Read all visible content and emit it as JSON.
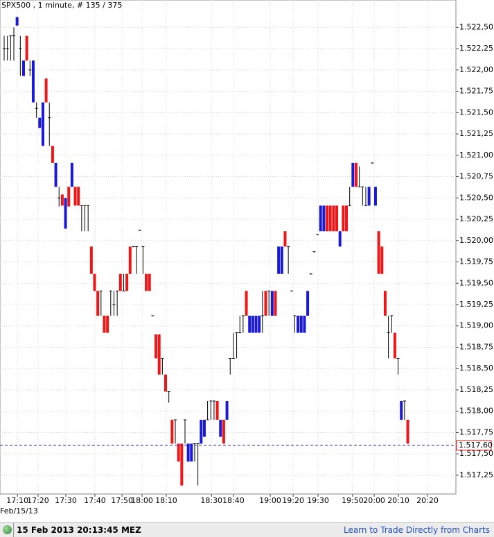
{
  "chart_data": {
    "type": "ohlc",
    "title": "SPX500 , 1 minute, # 135 / 375",
    "date_label": "Feb/15/13",
    "up_color": "#1a1ad6",
    "down_color": "#ee1616",
    "flat_color": "#000000",
    "grid": true,
    "ylim": [
      1517.03,
      1522.82
    ],
    "yticks": [
      {
        "value": 1517.25,
        "label": "1.517,25"
      },
      {
        "value": 1517.5,
        "label": "1.517,50"
      },
      {
        "value": 1517.75,
        "label": "1.517,75"
      },
      {
        "value": 1518.0,
        "label": "1.518,00"
      },
      {
        "value": 1518.25,
        "label": "1.518,25"
      },
      {
        "value": 1518.5,
        "label": "1.518,50"
      },
      {
        "value": 1518.75,
        "label": "1.518,75"
      },
      {
        "value": 1519.0,
        "label": "1.519,00"
      },
      {
        "value": 1519.25,
        "label": "1.519,25"
      },
      {
        "value": 1519.5,
        "label": "1.519,50"
      },
      {
        "value": 1519.75,
        "label": "1.519,75"
      },
      {
        "value": 1520.0,
        "label": "1.520,00"
      },
      {
        "value": 1520.25,
        "label": "1.520,25"
      },
      {
        "value": 1520.5,
        "label": "1.520,50"
      },
      {
        "value": 1520.75,
        "label": "1.520,75"
      },
      {
        "value": 1521.0,
        "label": "1.521,00"
      },
      {
        "value": 1521.25,
        "label": "1.521,25"
      },
      {
        "value": 1521.5,
        "label": "1.521,50"
      },
      {
        "value": 1521.75,
        "label": "1.521,75"
      },
      {
        "value": 1522.0,
        "label": "1.522,00"
      },
      {
        "value": 1522.25,
        "label": "1.522,25"
      },
      {
        "value": 1522.5,
        "label": "1.522,50"
      }
    ],
    "xlim": [
      -1.29,
      139.9
    ],
    "xticks": [
      {
        "value": 4.1,
        "label": "17:10"
      },
      {
        "value": 10.5,
        "label": "17:20"
      },
      {
        "value": 19.1,
        "label": "17:30"
      },
      {
        "value": 28.1,
        "label": "17:40"
      },
      {
        "value": 36.5,
        "label": "17:50"
      },
      {
        "value": 42.7,
        "label": "18:00"
      },
      {
        "value": 50.2,
        "label": "18:10"
      },
      {
        "value": 64.2,
        "label": "18:30"
      },
      {
        "value": 71.0,
        "label": "18:40"
      },
      {
        "value": 82.4,
        "label": "19:00"
      },
      {
        "value": 89.5,
        "label": "19:20"
      },
      {
        "value": 97.2,
        "label": "19:30"
      },
      {
        "value": 107.9,
        "label": "19:50"
      },
      {
        "value": 114.6,
        "label": "20:00"
      },
      {
        "value": 122.1,
        "label": "20:10"
      },
      {
        "value": 131.1,
        "label": "20:20"
      }
    ],
    "last_price": {
      "value": 1517.6,
      "label": "1.517,60"
    },
    "ohlc": [
      [
        1522.25,
        1522.4,
        1522.11,
        1522.25
      ],
      [
        1522.25,
        1522.4,
        1522.11,
        1522.25
      ],
      [
        1522.4,
        1522.4,
        1522.11,
        1522.4
      ],
      [
        1522.4,
        1522.5,
        1522.11,
        1522.4
      ],
      [
        1522.52,
        1522.62,
        1522.52,
        1522.62
      ],
      [
        1522.25,
        1522.4,
        1521.93,
        1522.25
      ],
      [
        1521.93,
        1522.11,
        1521.93,
        1522.11
      ],
      [
        1522.4,
        1522.4,
        1522.11,
        1522.11
      ],
      [
        1522.0,
        1522.11,
        1521.93,
        1522.0
      ],
      [
        1521.62,
        1522.11,
        1521.62,
        1522.11
      ],
      [
        1521.55,
        1521.62,
        1521.44,
        1521.55
      ],
      [
        1521.32,
        1521.44,
        1521.32,
        1521.44
      ],
      [
        1521.11,
        1521.62,
        1521.11,
        1521.62
      ],
      [
        1521.9,
        1521.9,
        1521.62,
        1521.62
      ],
      [
        1521.44,
        1521.62,
        1521.11,
        1521.44
      ],
      [
        1521.11,
        1521.11,
        1520.91,
        1520.91
      ],
      [
        1520.63,
        1520.91,
        1520.63,
        1520.91
      ],
      [
        1520.5,
        1520.63,
        1520.4,
        1520.5
      ],
      [
        1520.54,
        1520.54,
        1520.41,
        1520.41
      ],
      [
        1520.14,
        1520.5,
        1520.14,
        1520.5
      ],
      [
        1520.63,
        1520.63,
        1520.4,
        1520.4
      ],
      [
        1520.63,
        1520.91,
        1520.63,
        1520.91
      ],
      [
        1520.63,
        1520.63,
        1520.41,
        1520.41
      ],
      [
        1520.63,
        1520.63,
        1520.41,
        1520.41
      ],
      [
        1520.41,
        1520.41,
        1520.11,
        1520.41
      ],
      [
        1520.41,
        1520.41,
        1520.11,
        1520.41
      ],
      [
        1520.41,
        1520.41,
        1520.11,
        1520.41
      ],
      [
        1519.93,
        1519.93,
        1519.61,
        1519.61
      ],
      [
        1519.61,
        1519.61,
        1519.41,
        1519.41
      ],
      [
        1519.41,
        1519.41,
        1519.12,
        1519.12
      ],
      [
        1519.41,
        1519.41,
        1519.12,
        1519.41
      ],
      [
        1519.12,
        1519.12,
        1518.92,
        1518.92
      ],
      [
        1519.12,
        1519.12,
        1518.92,
        1518.92
      ],
      [
        1519.41,
        1519.41,
        1519.12,
        1519.41
      ],
      [
        1519.25,
        1519.41,
        1519.12,
        1519.25
      ],
      [
        1519.41,
        1519.41,
        1519.12,
        1519.41
      ],
      [
        1519.61,
        1519.61,
        1519.41,
        1519.41
      ],
      [
        1519.41,
        1519.61,
        1519.41,
        1519.41
      ],
      [
        1519.61,
        1519.61,
        1519.41,
        1519.41
      ],
      [
        1519.93,
        1519.93,
        1519.61,
        1519.61
      ],
      [
        1519.93,
        1519.93,
        1519.93,
        1519.93
      ],
      [
        1519.93,
        1519.93,
        1519.61,
        1519.93
      ],
      [
        1520.12,
        1520.12,
        1520.12,
        1520.12
      ],
      [
        1519.93,
        1519.93,
        1519.61,
        1519.93
      ],
      [
        1519.61,
        1519.61,
        1519.41,
        1519.41
      ],
      [
        1519.61,
        1519.61,
        1519.41,
        1519.41
      ],
      [
        1519.12,
        1519.12,
        1519.12,
        1519.12
      ],
      [
        1518.9,
        1518.9,
        1518.62,
        1518.62
      ],
      [
        1518.9,
        1518.9,
        1518.43,
        1518.43
      ],
      [
        1518.62,
        1518.62,
        1518.43,
        1518.62
      ],
      [
        1518.43,
        1518.43,
        1518.23,
        1518.23
      ],
      [
        1518.23,
        1518.23,
        1518.1,
        1518.23
      ],
      [
        1517.9,
        1517.9,
        1517.62,
        1517.62
      ],
      [
        1517.9,
        1517.9,
        1517.62,
        1517.9
      ],
      [
        1517.62,
        1517.62,
        1517.41,
        1517.41
      ],
      [
        1517.62,
        1517.62,
        1517.13,
        1517.13
      ],
      [
        1517.9,
        1517.9,
        1517.62,
        1517.9
      ],
      [
        1517.41,
        1517.62,
        1517.41,
        1517.62
      ],
      [
        1517.41,
        1517.62,
        1517.41,
        1517.62
      ],
      [
        1517.62,
        1517.62,
        1517.41,
        1517.62
      ],
      [
        1517.62,
        1517.62,
        1517.13,
        1517.62
      ],
      [
        1517.62,
        1517.9,
        1517.62,
        1517.9
      ],
      [
        1517.7,
        1517.9,
        1517.7,
        1517.9
      ],
      [
        1517.9,
        1518.12,
        1517.9,
        1517.9
      ],
      [
        1518.12,
        1518.12,
        1517.9,
        1518.12
      ],
      [
        1518.12,
        1518.12,
        1517.9,
        1518.12
      ],
      [
        1518.12,
        1518.12,
        1517.9,
        1517.9
      ],
      [
        1517.7,
        1517.9,
        1517.7,
        1517.9
      ],
      [
        1517.9,
        1517.9,
        1517.62,
        1517.62
      ],
      [
        1517.9,
        1518.12,
        1517.9,
        1518.12
      ],
      [
        1518.62,
        1518.62,
        1518.43,
        1518.62
      ],
      [
        1518.62,
        1518.92,
        1518.62,
        1518.62
      ],
      [
        1518.92,
        1518.92,
        1518.62,
        1518.92
      ],
      [
        1518.92,
        1519.12,
        1518.92,
        1518.92
      ],
      [
        1519.12,
        1519.12,
        1518.92,
        1519.12
      ],
      [
        1519.41,
        1519.41,
        1519.12,
        1519.12
      ],
      [
        1518.92,
        1519.12,
        1518.92,
        1519.12
      ],
      [
        1518.92,
        1519.12,
        1518.92,
        1519.12
      ],
      [
        1518.92,
        1519.12,
        1518.92,
        1519.12
      ],
      [
        1518.92,
        1519.12,
        1518.92,
        1519.12
      ],
      [
        1519.12,
        1519.41,
        1518.92,
        1519.12
      ],
      [
        1519.41,
        1519.41,
        1519.12,
        1519.12
      ],
      [
        1519.41,
        1519.41,
        1519.12,
        1519.41
      ],
      [
        1519.12,
        1519.41,
        1519.12,
        1519.41
      ],
      [
        1519.41,
        1519.41,
        1519.12,
        1519.12
      ],
      [
        1519.61,
        1519.93,
        1519.61,
        1519.93
      ],
      [
        1519.61,
        1519.93,
        1519.61,
        1519.93
      ],
      [
        1520.11,
        1520.11,
        1519.93,
        1519.93
      ],
      [
        1519.93,
        1519.93,
        1519.61,
        1519.93
      ],
      [
        1519.41,
        1519.41,
        1519.41,
        1519.41
      ],
      [
        1519.12,
        1519.12,
        1518.92,
        1519.12
      ],
      [
        1518.92,
        1519.12,
        1518.92,
        1519.12
      ],
      [
        1518.92,
        1519.12,
        1518.92,
        1519.12
      ],
      [
        1518.92,
        1519.12,
        1518.92,
        1519.12
      ],
      [
        1519.12,
        1519.41,
        1519.12,
        1519.41
      ],
      [
        1519.61,
        1519.61,
        1519.61,
        1519.61
      ],
      [
        1519.87,
        1519.87,
        1519.87,
        1519.87
      ],
      [
        1520.07,
        1520.07,
        1520.07,
        1520.07
      ],
      [
        1520.11,
        1520.41,
        1520.11,
        1520.41
      ],
      [
        1520.11,
        1520.41,
        1520.11,
        1520.41
      ],
      [
        1520.41,
        1520.41,
        1520.11,
        1520.11
      ],
      [
        1520.41,
        1520.41,
        1520.11,
        1520.11
      ],
      [
        1520.41,
        1520.41,
        1520.11,
        1520.11
      ],
      [
        1520.41,
        1520.41,
        1520.11,
        1520.11
      ],
      [
        1519.93,
        1520.11,
        1519.93,
        1520.11
      ],
      [
        1520.41,
        1520.41,
        1520.11,
        1520.11
      ],
      [
        1520.41,
        1520.41,
        1520.11,
        1520.11
      ],
      [
        1520.41,
        1520.63,
        1520.41,
        1520.41
      ],
      [
        1520.63,
        1520.91,
        1520.63,
        1520.91
      ],
      [
        1520.91,
        1520.91,
        1520.63,
        1520.63
      ],
      [
        1520.63,
        1520.87,
        1520.63,
        1520.63
      ],
      [
        1520.63,
        1520.63,
        1520.41,
        1520.63
      ],
      [
        1520.41,
        1520.63,
        1520.41,
        1520.41
      ],
      [
        1520.41,
        1520.63,
        1520.41,
        1520.63
      ],
      [
        1520.91,
        1520.91,
        1520.91,
        1520.91
      ],
      [
        1520.41,
        1520.63,
        1520.41,
        1520.63
      ],
      [
        1520.11,
        1520.11,
        1519.61,
        1519.61
      ],
      [
        1519.93,
        1519.93,
        1519.61,
        1519.61
      ],
      [
        1519.41,
        1519.41,
        1519.12,
        1519.12
      ],
      [
        1518.92,
        1519.12,
        1518.62,
        1518.92
      ],
      [
        1519.12,
        1519.12,
        1518.92,
        1519.12
      ],
      [
        1518.92,
        1518.92,
        1518.62,
        1518.62
      ],
      [
        1518.62,
        1518.62,
        1518.43,
        1518.62
      ],
      [
        1517.9,
        1518.12,
        1517.9,
        1518.12
      ],
      [
        1518.12,
        1518.12,
        1517.9,
        1518.12
      ],
      [
        1517.9,
        1517.9,
        1517.62,
        1517.62
      ]
    ]
  },
  "footer": {
    "timestamp": "15 Feb 2013 20:13:45 MEZ",
    "link": "Learn to Trade Directly from Charts"
  }
}
